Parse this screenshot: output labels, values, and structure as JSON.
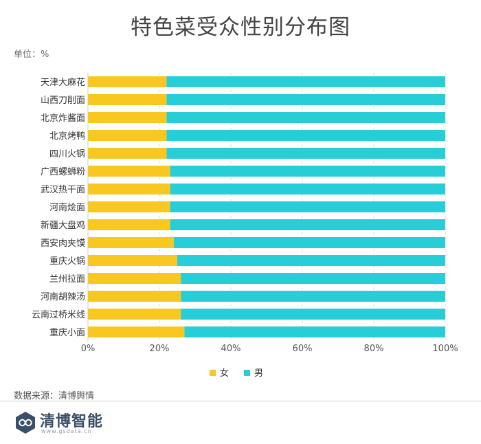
{
  "header": {
    "title": "特色菜受众性别分布图",
    "unit": "单位：%"
  },
  "footer": {
    "source": "数据来源：清博舆情",
    "brand": "清博智能",
    "site": "www.gsdata.cn"
  },
  "chart_data": {
    "type": "bar",
    "orientation": "horizontal",
    "stacked": true,
    "title": "特色菜受众性别分布图",
    "unit": "%",
    "categories": [
      "天津大麻花",
      "山西刀削面",
      "北京炸酱面",
      "北京烤鸭",
      "四川火锅",
      "广西螺蛳粉",
      "武汉热干面",
      "河南烩面",
      "新疆大盘鸡",
      "西安肉夹馍",
      "重庆火锅",
      "兰州拉面",
      "河南胡辣汤",
      "云南过桥米线",
      "重庆小面"
    ],
    "series": [
      {
        "name": "女",
        "color": "#F9C820",
        "values": [
          22,
          22,
          22,
          22,
          22,
          23,
          23,
          23,
          23,
          24,
          25,
          26,
          26,
          26,
          27
        ]
      },
      {
        "name": "男",
        "color": "#27CED7",
        "values": [
          78,
          78,
          78,
          78,
          78,
          77,
          77,
          77,
          77,
          76,
          75,
          74,
          74,
          74,
          73
        ]
      }
    ],
    "xlim": [
      0,
      100
    ],
    "xticks": [
      "0%",
      "20%",
      "40%",
      "60%",
      "80%",
      "100%"
    ],
    "grid": true,
    "legend_position": "bottom"
  }
}
